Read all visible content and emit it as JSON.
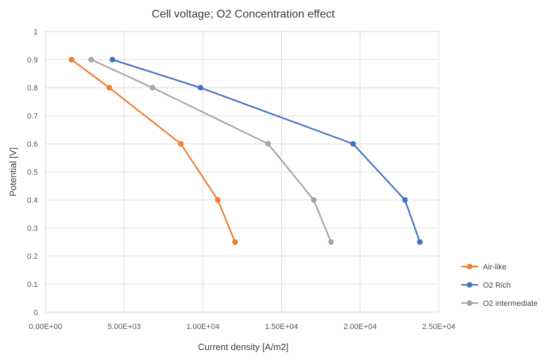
{
  "chart_data": {
    "type": "line",
    "title": "Cell voltage; O2 Concentration effect",
    "xlabel": "Current density [A/m2]",
    "ylabel": "Potential [V]",
    "xlim": [
      0,
      25000
    ],
    "ylim": [
      0,
      1
    ],
    "x_ticks": [
      0,
      5000,
      10000,
      15000,
      20000,
      25000
    ],
    "x_tick_labels": [
      "0.00E+00",
      "5.00E+03",
      "1.00E+04",
      "1.50E+04",
      "2.00E+04",
      "2.50E+04"
    ],
    "y_ticks": [
      0,
      0.1,
      0.2,
      0.3,
      0.4,
      0.5,
      0.6,
      0.7,
      0.8,
      0.9,
      1
    ],
    "y_tick_labels": [
      "0",
      "0.1",
      "0.2",
      "0.3",
      "0.4",
      "0.5",
      "0.6",
      "0.7",
      "0.8",
      "0.9",
      "1"
    ],
    "grid": true,
    "legend_position": "right",
    "series": [
      {
        "name": "Air-like",
        "color": "#ed7d31",
        "points": [
          [
            1650,
            0.9
          ],
          [
            4050,
            0.8
          ],
          [
            8600,
            0.6
          ],
          [
            10950,
            0.4
          ],
          [
            12050,
            0.25
          ]
        ]
      },
      {
        "name": "O2 Rich",
        "color": "#4472c4",
        "points": [
          [
            4250,
            0.9
          ],
          [
            9850,
            0.8
          ],
          [
            19550,
            0.6
          ],
          [
            22850,
            0.4
          ],
          [
            23800,
            0.25
          ]
        ]
      },
      {
        "name": "O2 intermediate",
        "color": "#a5a5a5",
        "points": [
          [
            2900,
            0.9
          ],
          [
            6800,
            0.8
          ],
          [
            14150,
            0.6
          ],
          [
            17050,
            0.4
          ],
          [
            18150,
            0.25
          ]
        ]
      }
    ]
  }
}
